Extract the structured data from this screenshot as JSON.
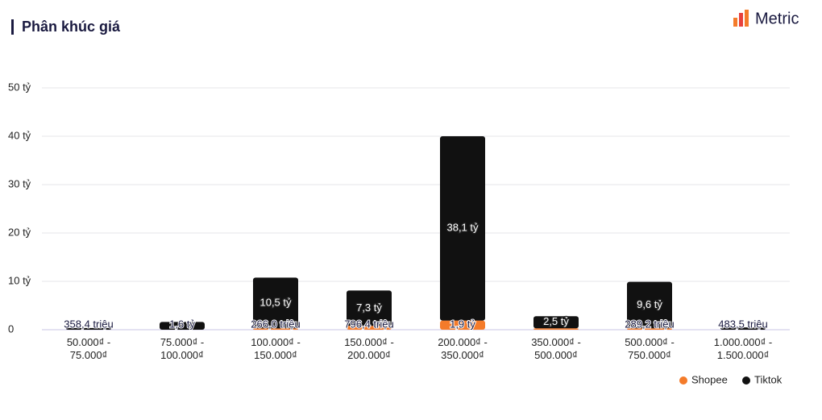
{
  "header": {
    "title": "Phân khúc giá",
    "brand": "Metric"
  },
  "chart_data": {
    "type": "stacked-bar",
    "categories": [
      "50.000₫ - 75.000₫",
      "75.000₫ - 100.000₫",
      "100.000₫ - 150.000₫",
      "150.000₫ - 200.000₫",
      "200.000₫ - 350.000₫",
      "350.000₫ - 500.000₫",
      "500.000₫ - 750.000₫",
      "1.000.000₫ - 1.500.000₫"
    ],
    "series": [
      {
        "name": "Shopee",
        "color": "#f47b2a",
        "values": [
          0,
          0,
          0.266,
          0.7964,
          1.9,
          0.3,
          0.2892,
          0
        ],
        "value_labels": [
          null,
          null,
          "266,0 triệu",
          "796,4 triệu",
          "1,9 tỷ",
          null,
          "289,2 triệu",
          null
        ]
      },
      {
        "name": "Tiktok",
        "color": "#111111",
        "values": [
          0.3584,
          1.6,
          10.5,
          7.3,
          38.1,
          2.5,
          9.6,
          0.4835
        ],
        "value_labels": [
          "358,4 triệu",
          "1,6 tỷ",
          "10,5 tỷ",
          "7,3 tỷ",
          "38,1 tỷ",
          "2,5 tỷ",
          "9,6 tỷ",
          "483,5 triệu"
        ]
      }
    ],
    "ylim": [
      0,
      50
    ],
    "yticks": [
      0,
      {
        "value": 10,
        "label": "10 tỷ"
      },
      {
        "value": 20,
        "label": "20 tỷ"
      },
      {
        "value": 30,
        "label": "30 tỷ"
      },
      {
        "value": 40,
        "label": "40 tỷ"
      },
      {
        "value": 50,
        "label": "50 tỷ"
      }
    ],
    "grid": true,
    "legend": "bottom-right"
  }
}
